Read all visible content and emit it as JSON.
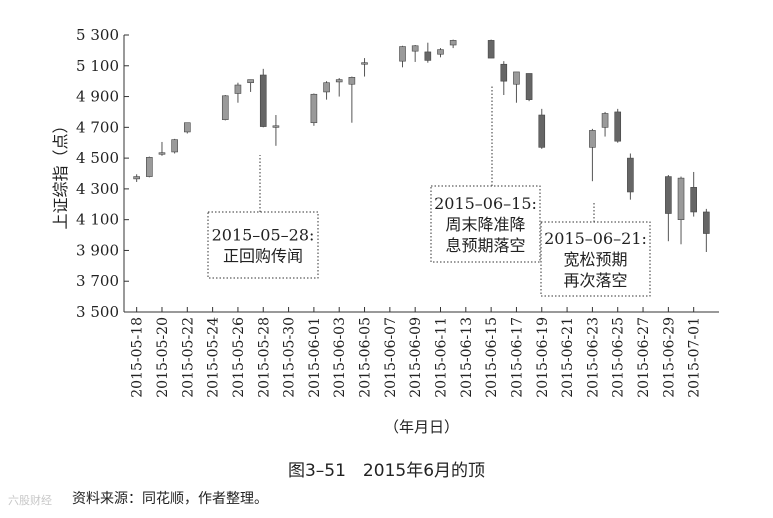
{
  "chart_data": {
    "type": "candlestick",
    "ylabel": "上证综指（点）",
    "xlabel": "（年月日）",
    "ylim": [
      3500,
      5300
    ],
    "yticks": [
      3500,
      3700,
      3900,
      4100,
      4300,
      4500,
      4700,
      4900,
      5100,
      5300
    ],
    "ytick_labels": [
      "3 500",
      "3 700",
      "3 900",
      "4 100",
      "4 300",
      "4 500",
      "4 700",
      "4 900",
      "5 100",
      "5 300"
    ],
    "xlim": [
      "2015-05-17",
      "2015-07-03"
    ],
    "xtick_labels": [
      "2015-05-18",
      "2015-05-20",
      "2015-05-22",
      "2015-05-24",
      "2015-05-26",
      "2015-05-28",
      "2015-05-30",
      "2015-06-01",
      "2015-06-03",
      "2015-06-05",
      "2015-06-07",
      "2015-06-09",
      "2015-06-11",
      "2015-06-13",
      "2015-06-15",
      "2015-06-17",
      "2015-06-19",
      "2015-06-21",
      "2015-06-23",
      "2015-06-25",
      "2015-06-27",
      "2015-06-29",
      "2015-07-01"
    ],
    "candles": [
      {
        "date": "2015-05-18",
        "open": 4365,
        "high": 4395,
        "low": 4345,
        "close": 4380
      },
      {
        "date": "2015-05-19",
        "open": 4380,
        "high": 4510,
        "low": 4375,
        "close": 4505
      },
      {
        "date": "2015-05-20",
        "open": 4525,
        "high": 4605,
        "low": 4515,
        "close": 4535
      },
      {
        "date": "2015-05-21",
        "open": 4540,
        "high": 4625,
        "low": 4530,
        "close": 4620
      },
      {
        "date": "2015-05-22",
        "open": 4670,
        "high": 4730,
        "low": 4660,
        "close": 4730
      },
      {
        "date": "2015-05-25",
        "open": 4750,
        "high": 4910,
        "low": 4745,
        "close": 4905
      },
      {
        "date": "2015-05-26",
        "open": 4920,
        "high": 4990,
        "low": 4860,
        "close": 4975
      },
      {
        "date": "2015-05-27",
        "open": 4990,
        "high": 5010,
        "low": 4930,
        "close": 5010
      },
      {
        "date": "2015-05-28",
        "open": 5040,
        "high": 5080,
        "low": 4700,
        "close": 4705
      },
      {
        "date": "2015-05-29",
        "open": 4700,
        "high": 4780,
        "low": 4580,
        "close": 4710
      },
      {
        "date": "2015-06-01",
        "open": 4730,
        "high": 4920,
        "low": 4710,
        "close": 4915
      },
      {
        "date": "2015-06-02",
        "open": 4930,
        "high": 5000,
        "low": 4880,
        "close": 4990
      },
      {
        "date": "2015-06-03",
        "open": 4995,
        "high": 5020,
        "low": 4900,
        "close": 5010
      },
      {
        "date": "2015-06-04",
        "open": 4980,
        "high": 5030,
        "low": 4730,
        "close": 5025
      },
      {
        "date": "2015-06-05",
        "open": 5110,
        "high": 5150,
        "low": 5030,
        "close": 5120
      },
      {
        "date": "2015-06-08",
        "open": 5130,
        "high": 5230,
        "low": 5090,
        "close": 5225
      },
      {
        "date": "2015-06-09",
        "open": 5195,
        "high": 5235,
        "low": 5125,
        "close": 5230
      },
      {
        "date": "2015-06-10",
        "open": 5190,
        "high": 5250,
        "low": 5120,
        "close": 5135
      },
      {
        "date": "2015-06-11",
        "open": 5175,
        "high": 5215,
        "low": 5155,
        "close": 5205
      },
      {
        "date": "2015-06-12",
        "open": 5235,
        "high": 5270,
        "low": 5215,
        "close": 5265
      },
      {
        "date": "2015-06-15",
        "open": 5265,
        "high": 5270,
        "low": 5150,
        "close": 5150
      },
      {
        "date": "2015-06-16",
        "open": 5110,
        "high": 5130,
        "low": 4910,
        "close": 5000
      },
      {
        "date": "2015-06-17",
        "open": 4980,
        "high": 5060,
        "low": 4860,
        "close": 5060
      },
      {
        "date": "2015-06-18",
        "open": 5050,
        "high": 5050,
        "low": 4870,
        "close": 4880
      },
      {
        "date": "2015-06-19",
        "open": 4780,
        "high": 4820,
        "low": 4560,
        "close": 4570
      },
      {
        "date": "2015-06-23",
        "open": 4570,
        "high": 4690,
        "low": 4350,
        "close": 4680
      },
      {
        "date": "2015-06-24",
        "open": 4700,
        "high": 4800,
        "low": 4640,
        "close": 4790
      },
      {
        "date": "2015-06-25",
        "open": 4800,
        "high": 4820,
        "low": 4600,
        "close": 4610
      },
      {
        "date": "2015-06-26",
        "open": 4500,
        "high": 4530,
        "low": 4230,
        "close": 4280
      },
      {
        "date": "2015-06-29",
        "open": 4380,
        "high": 4390,
        "low": 3960,
        "close": 4140
      },
      {
        "date": "2015-06-30",
        "open": 4100,
        "high": 4380,
        "low": 3940,
        "close": 4370
      },
      {
        "date": "2015-07-01",
        "open": 4310,
        "high": 4410,
        "low": 4120,
        "close": 4150
      },
      {
        "date": "2015-07-02",
        "open": 4150,
        "high": 4170,
        "low": 3890,
        "close": 4010
      }
    ],
    "annotations": [
      {
        "date": "2015-05-28",
        "lines": [
          "2015–05–28:",
          "正回购传闻"
        ]
      },
      {
        "date": "2015-06-15",
        "lines": [
          "2015–06–15:",
          "周末降准降",
          "息预期落空"
        ]
      },
      {
        "date": "2015-06-24",
        "lines": [
          "2015–06–21:",
          "宽松预期",
          "再次落空"
        ]
      }
    ]
  },
  "caption": "图3–51　2015年6月的顶",
  "source": "资料来源：同花顺，作者整理。",
  "watermark": "六股财经"
}
